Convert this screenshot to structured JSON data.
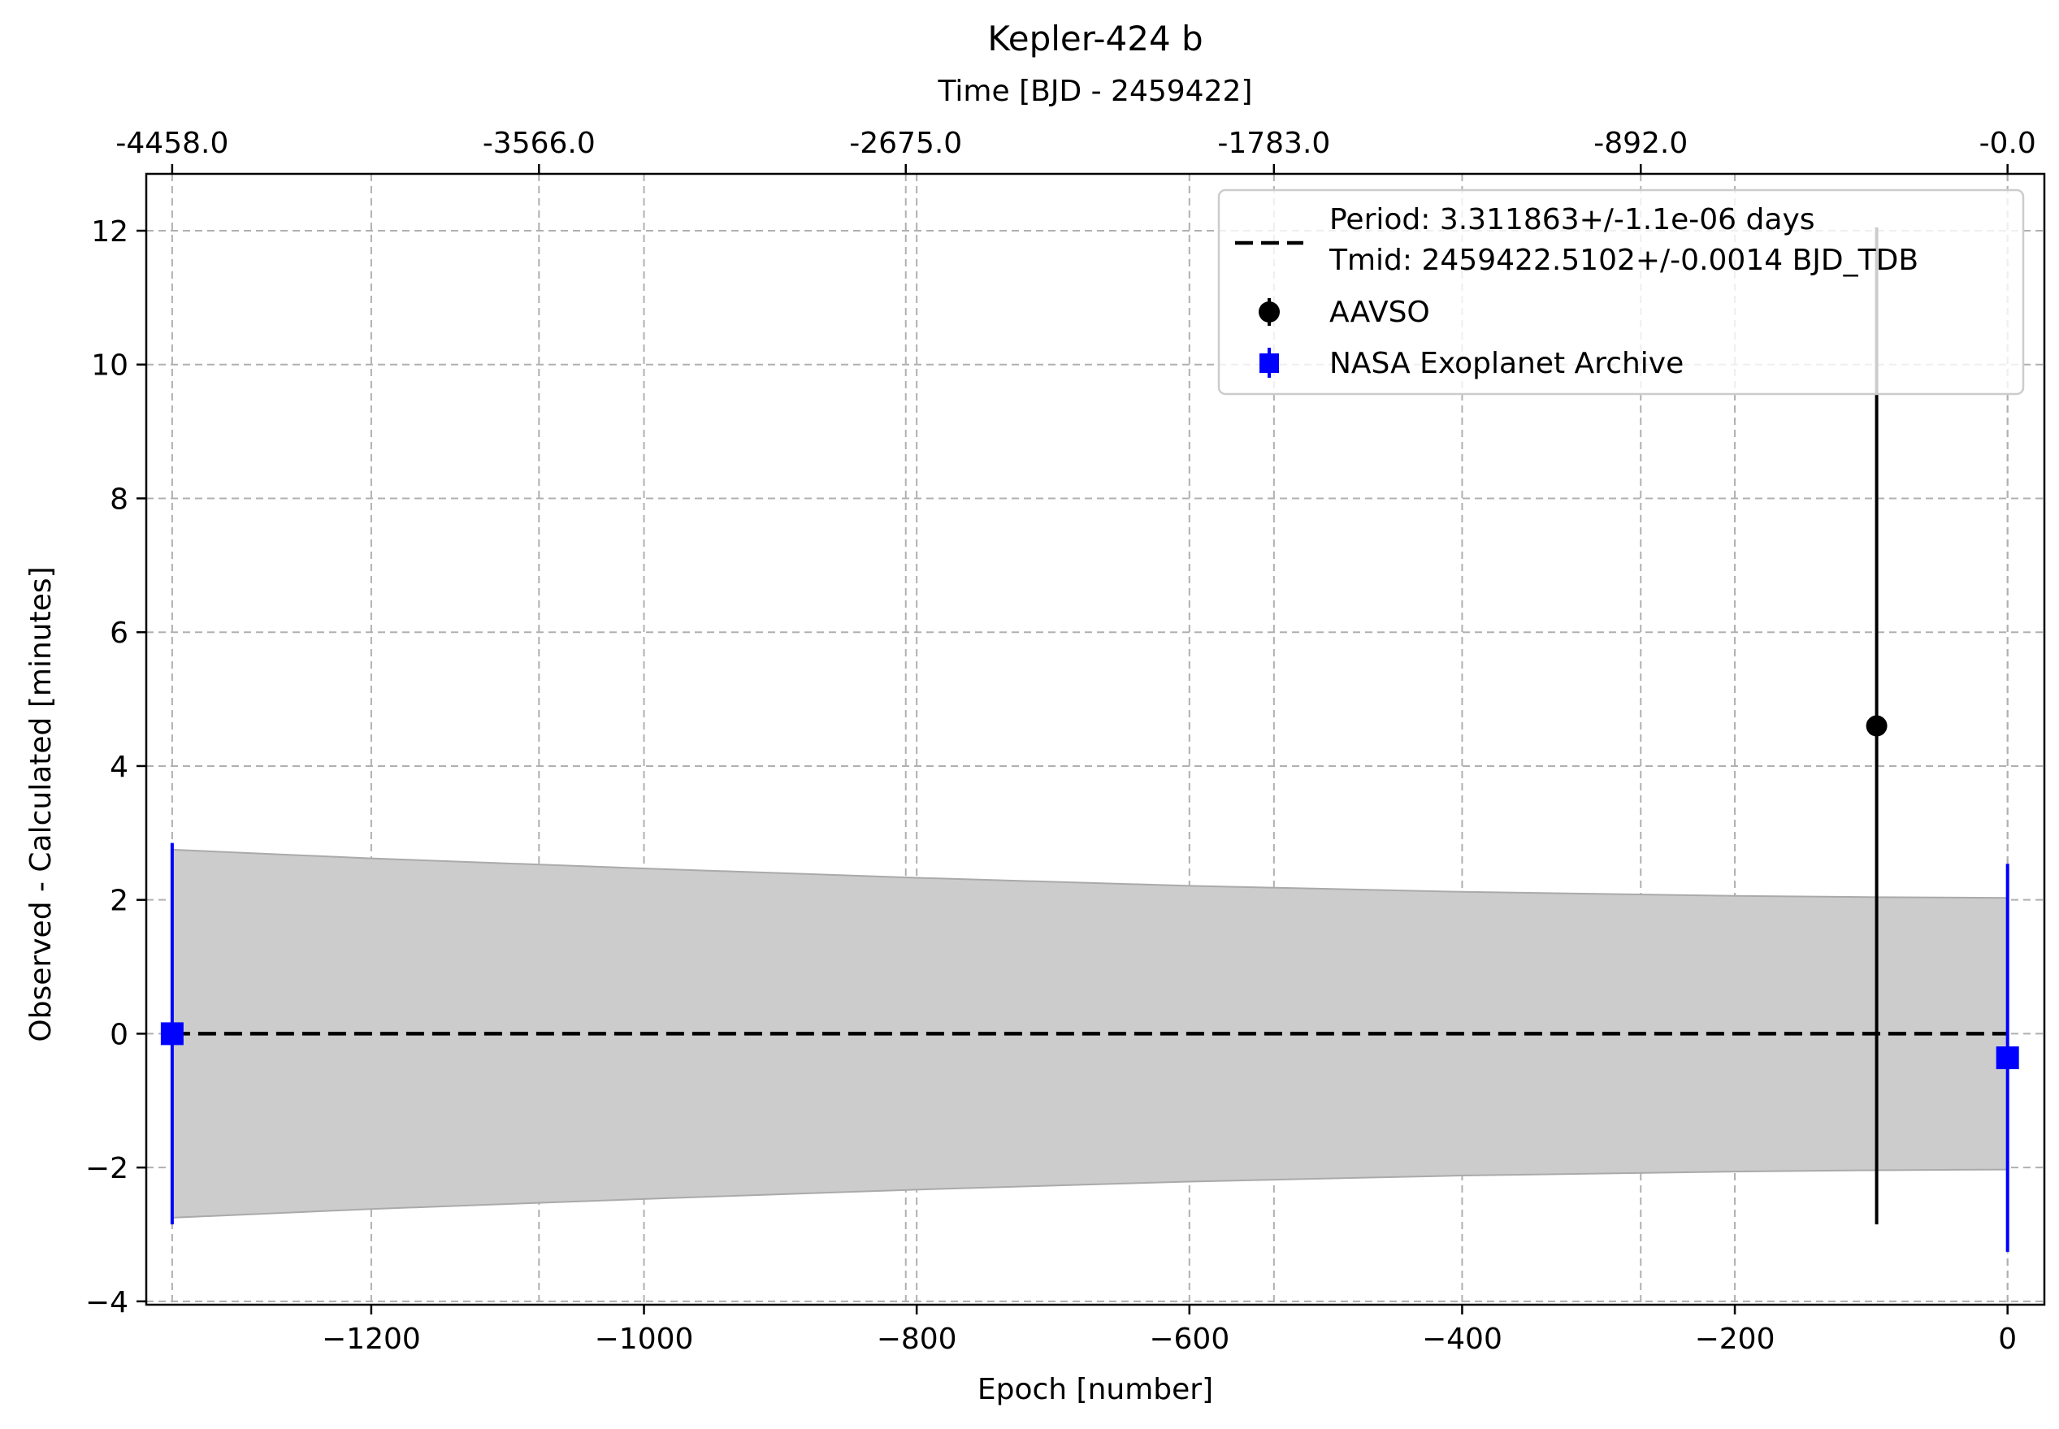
{
  "chart_data": {
    "type": "scatter",
    "title": "Kepler-424 b",
    "xlabel": "Epoch [number]",
    "ylabel": "Observed - Calculated [minutes]",
    "x2label": "Time [BJD - 2459422]",
    "xlim": [
      -1365,
      27
    ],
    "ylim": [
      -4.05,
      12.85
    ],
    "x_ticks": [
      -1200,
      -1000,
      -800,
      -600,
      -400,
      -200,
      0
    ],
    "x_tick_labels": [
      "−1200",
      "−1000",
      "−800",
      "−600",
      "−400",
      "−200",
      "0"
    ],
    "y_ticks": [
      -4,
      -2,
      0,
      2,
      4,
      6,
      8,
      10,
      12
    ],
    "y_tick_labels": [
      "−4",
      "−2",
      "0",
      "2",
      "4",
      "6",
      "8",
      "10",
      "12"
    ],
    "x2_ticks": [
      {
        "epoch": -1346,
        "label": "-4458.0"
      },
      {
        "epoch": -1077,
        "label": "-3566.0"
      },
      {
        "epoch": -808,
        "label": "-2675.0"
      },
      {
        "epoch": -538,
        "label": "-1783.0"
      },
      {
        "epoch": -269,
        "label": "-892.0"
      },
      {
        "epoch": 0,
        "label": "-0.0"
      }
    ],
    "grid": true,
    "legend_position": "top-right",
    "fit_line": {
      "label_line1": "Period: 3.311863+/-1.1e-06 days",
      "label_line2": "Tmid: 2459422.5102+/-0.0014 BJD_TDB",
      "color": "#000000",
      "x": [
        -1346,
        0
      ],
      "y": [
        0,
        0
      ]
    },
    "uncertainty_band": {
      "color": "#cccccc",
      "x": [
        -1346,
        -1200,
        -1000,
        -800,
        -600,
        -400,
        -200,
        -96,
        0
      ],
      "upper": [
        2.75,
        2.62,
        2.47,
        2.33,
        2.21,
        2.12,
        2.06,
        2.04,
        2.03
      ],
      "lower": [
        -2.75,
        -2.62,
        -2.47,
        -2.33,
        -2.21,
        -2.12,
        -2.06,
        -2.04,
        -2.03
      ]
    },
    "series": [
      {
        "name": "AAVSO",
        "marker": "circle",
        "color": "#000000",
        "points": [
          {
            "x": -96,
            "y": 4.6,
            "err": 7.45
          }
        ]
      },
      {
        "name": "NASA Exoplanet Archive",
        "marker": "square",
        "color": "#0000ff",
        "points": [
          {
            "x": -1346,
            "y": 0.0,
            "err": 2.85
          },
          {
            "x": 0,
            "y": -0.36,
            "err": 2.9
          }
        ]
      }
    ]
  }
}
